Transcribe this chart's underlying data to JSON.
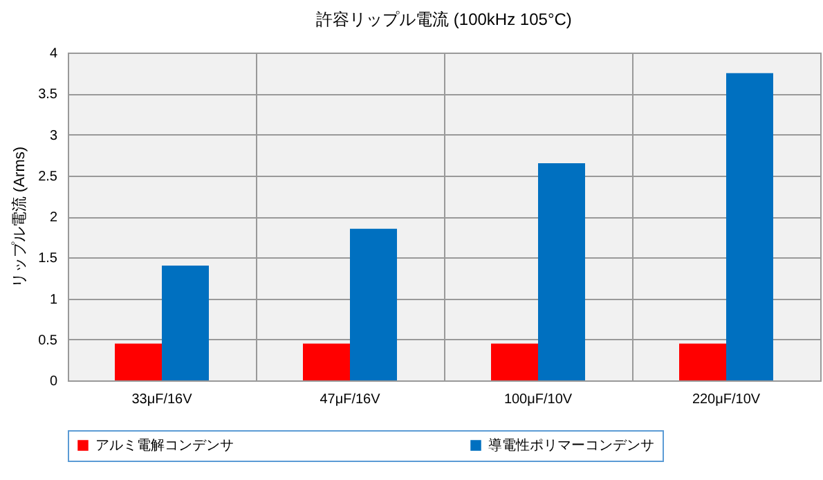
{
  "chart_data": {
    "type": "bar",
    "title": "許容リップル電流 (100kHz 105°C)",
    "ylabel": "リップル電流 (Arms)",
    "categories": [
      "33μF/16V",
      "47μF/16V",
      "100μF/10V",
      "220μF/10V"
    ],
    "series": [
      {
        "name": "アルミ電解コンデンサ",
        "color": "#ff0000",
        "values": [
          0.45,
          0.45,
          0.45,
          0.45
        ]
      },
      {
        "name": "導電性ポリマーコンデンサ",
        "color": "#0070c0",
        "values": [
          1.4,
          1.85,
          2.65,
          3.75
        ]
      }
    ],
    "ylim": [
      0,
      4
    ],
    "yticks": [
      0,
      0.5,
      1,
      1.5,
      2,
      2.5,
      3,
      3.5,
      4
    ],
    "grid": true,
    "legend": "bottom"
  }
}
